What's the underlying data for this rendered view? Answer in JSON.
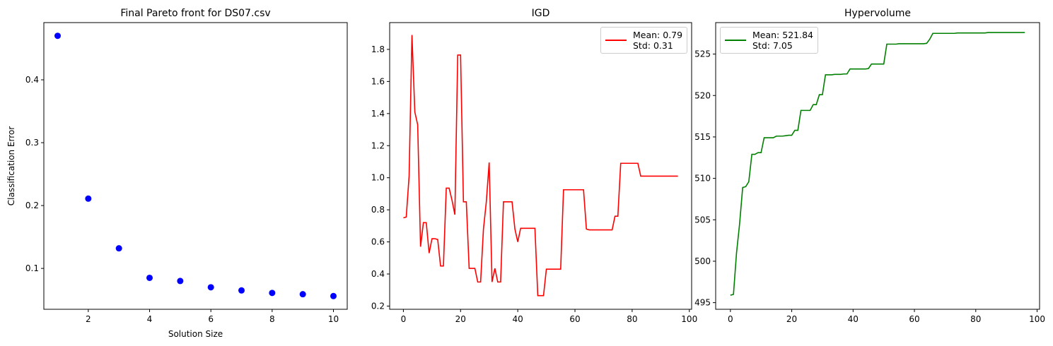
{
  "chart_data": [
    {
      "type": "scatter",
      "title": "Final Pareto front for DS07.csv",
      "x_label": "Solution Size",
      "y_label": "Classification Error",
      "x": [
        1,
        2,
        3,
        4,
        5,
        6,
        7,
        8,
        9,
        10
      ],
      "series": [
        {
          "color": "#0000ff",
          "values": [
            0.47,
            0.211,
            0.132,
            0.085,
            0.08,
            0.07,
            0.065,
            0.061,
            0.059,
            0.056
          ]
        }
      ],
      "xlim": [
        0.55,
        10.45
      ],
      "xticks": [
        2,
        4,
        6,
        8,
        10
      ],
      "ylim": [
        0.035,
        0.491
      ],
      "yticks": [
        0.1,
        0.2,
        0.3,
        0.4
      ]
    },
    {
      "type": "line",
      "title": "IGD",
      "legend": "upper right",
      "x": [
        0,
        1,
        2,
        3,
        4,
        5,
        6,
        7,
        8,
        9,
        10,
        11,
        12,
        13,
        14,
        15,
        16,
        17,
        18,
        19,
        20,
        21,
        22,
        23,
        24,
        25,
        26,
        27,
        28,
        29,
        30,
        31,
        32,
        33,
        34,
        35,
        36,
        37,
        38,
        39,
        40,
        41,
        42,
        43,
        44,
        45,
        46,
        47,
        48,
        49,
        50,
        51,
        52,
        53,
        54,
        55,
        56,
        57,
        58,
        59,
        60,
        61,
        62,
        63,
        64,
        65,
        66,
        67,
        68,
        69,
        70,
        71,
        72,
        73,
        74,
        75,
        76,
        77,
        78,
        79,
        80,
        81,
        82,
        83,
        84,
        85,
        86,
        87,
        88,
        89,
        90,
        91,
        92,
        93,
        94,
        95,
        96
      ],
      "series": [
        {
          "name": "Mean: 0.79\nStd: 0.31",
          "color": "#ff0000",
          "values": [
            0.75,
            0.755,
            1.01,
            1.89,
            1.41,
            1.33,
            0.57,
            0.72,
            0.72,
            0.53,
            0.62,
            0.62,
            0.615,
            0.45,
            0.45,
            0.935,
            0.935,
            0.86,
            0.77,
            1.765,
            1.765,
            0.85,
            0.85,
            0.435,
            0.435,
            0.435,
            0.35,
            0.35,
            0.68,
            0.85,
            1.095,
            0.35,
            0.435,
            0.35,
            0.35,
            0.85,
            0.85,
            0.85,
            0.85,
            0.68,
            0.6,
            0.685,
            0.685,
            0.685,
            0.685,
            0.685,
            0.685,
            0.265,
            0.265,
            0.265,
            0.43,
            0.43,
            0.43,
            0.43,
            0.43,
            0.43,
            0.925,
            0.925,
            0.925,
            0.925,
            0.925,
            0.925,
            0.925,
            0.925,
            0.68,
            0.675,
            0.675,
            0.675,
            0.675,
            0.675,
            0.675,
            0.675,
            0.675,
            0.675,
            0.76,
            0.76,
            1.09,
            1.09,
            1.09,
            1.09,
            1.09,
            1.09,
            1.09,
            1.01,
            1.01,
            1.01,
            1.01,
            1.01,
            1.01,
            1.01,
            1.01,
            1.01,
            1.01,
            1.01,
            1.01,
            1.01,
            1.01
          ]
        }
      ],
      "xlim": [
        -4.8,
        100.8
      ],
      "xticks": [
        0,
        20,
        40,
        60,
        80,
        100
      ],
      "ylim": [
        0.18,
        1.967
      ],
      "yticks": [
        0.2,
        0.4,
        0.6,
        0.8,
        {
          "value": 1,
          "label": "1.0"
        },
        1.2,
        1.4,
        1.6,
        1.8
      ]
    },
    {
      "type": "line",
      "title": "Hypervolume",
      "legend": "upper left",
      "x": [
        0,
        1,
        2,
        3,
        4,
        5,
        6,
        7,
        8,
        9,
        10,
        11,
        12,
        13,
        14,
        15,
        16,
        17,
        18,
        19,
        20,
        21,
        22,
        23,
        24,
        25,
        26,
        27,
        28,
        29,
        30,
        31,
        32,
        33,
        34,
        35,
        36,
        37,
        38,
        39,
        40,
        41,
        42,
        43,
        44,
        45,
        46,
        47,
        48,
        49,
        50,
        51,
        52,
        53,
        54,
        55,
        56,
        57,
        58,
        59,
        60,
        61,
        62,
        63,
        64,
        65,
        66,
        67,
        68,
        69,
        70,
        71,
        72,
        73,
        74,
        75,
        76,
        77,
        78,
        79,
        80,
        81,
        82,
        83,
        84,
        85,
        86,
        87,
        88,
        89,
        90,
        91,
        92,
        93,
        94,
        95,
        96
      ],
      "series": [
        {
          "name": "Mean: 521.84\nStd: 7.05",
          "color": "#008000",
          "values": [
            495.9,
            496.0,
            501.0,
            504.5,
            508.9,
            509.0,
            509.6,
            512.9,
            512.9,
            513.1,
            513.1,
            514.9,
            514.9,
            514.9,
            514.9,
            515.1,
            515.1,
            515.1,
            515.15,
            515.2,
            515.2,
            515.8,
            515.8,
            518.2,
            518.2,
            518.2,
            518.2,
            518.9,
            518.9,
            520.1,
            520.1,
            522.5,
            522.5,
            522.5,
            522.55,
            522.55,
            522.55,
            522.6,
            522.6,
            523.2,
            523.2,
            523.2,
            523.2,
            523.2,
            523.2,
            523.25,
            523.8,
            523.8,
            523.8,
            523.8,
            523.8,
            526.2,
            526.2,
            526.2,
            526.2,
            526.25,
            526.25,
            526.25,
            526.25,
            526.25,
            526.25,
            526.25,
            526.25,
            526.25,
            526.3,
            526.8,
            527.5,
            527.5,
            527.5,
            527.5,
            527.5,
            527.5,
            527.5,
            527.5,
            527.55,
            527.55,
            527.55,
            527.55,
            527.55,
            527.55,
            527.55,
            527.55,
            527.55,
            527.55,
            527.6,
            527.6,
            527.6,
            527.6,
            527.6,
            527.6,
            527.6,
            527.6,
            527.6,
            527.6,
            527.6,
            527.6,
            527.6
          ]
        }
      ],
      "xlim": [
        -4.8,
        100.8
      ],
      "xticks": [
        0,
        20,
        40,
        60,
        80,
        100
      ],
      "ylim": [
        494.2,
        528.8
      ],
      "yticks": [
        495,
        500,
        505,
        510,
        515,
        520,
        525
      ]
    }
  ]
}
